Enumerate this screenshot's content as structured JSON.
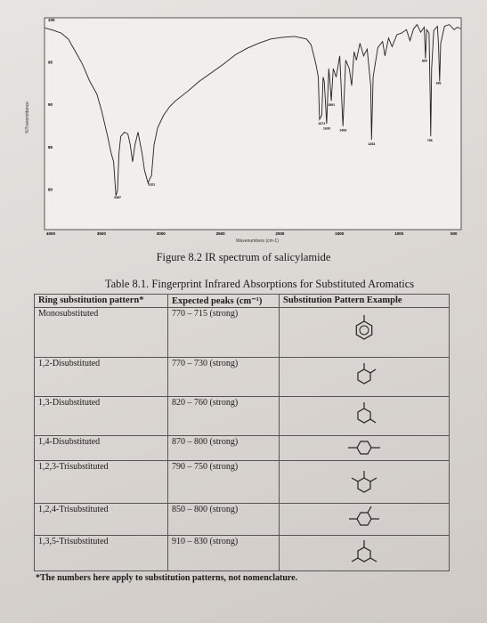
{
  "figure": {
    "caption": "Figure 8.2 IR spectrum of salicylamide",
    "y_axis_title": "%Transmittance",
    "x_axis_title": "Wavenumbers (cm-1)",
    "y_ticks": [
      "100",
      "95",
      "90",
      "85",
      "80"
    ],
    "x_ticks": [
      "4000",
      "3500",
      "3000",
      "2500",
      "2000",
      "1500",
      "1000",
      "500"
    ],
    "peak_labels": [
      "3101",
      "3387",
      "1671",
      "1630",
      "1591",
      "1493",
      "1253",
      "800",
      "681",
      "756"
    ]
  },
  "table": {
    "caption": "Table 8.1. Fingerprint Infrared Absorptions for Substituted Aromatics",
    "headers": [
      "Ring substitution pattern*",
      "Expected peaks (cm⁻¹)",
      "Substitution Pattern Example"
    ],
    "rows": [
      {
        "pattern": "Monosubstituted",
        "peaks": "770 – 715 (strong)",
        "ring": "mono-ring-icon"
      },
      {
        "pattern": "1,2-Disubstituted",
        "peaks": "770 – 730 (strong)",
        "ring": "ortho-ring-icon"
      },
      {
        "pattern": "1,3-Disubstituted",
        "peaks": "820 – 760 (strong)",
        "ring": "meta-ring-icon"
      },
      {
        "pattern": "1,4-Disubstituted",
        "peaks": "870 – 800 (strong)",
        "ring": "para-ring-icon"
      },
      {
        "pattern": "1,2,3-Trisubstituted",
        "peaks": "790 – 750 (strong)",
        "ring": "123-ring-icon"
      },
      {
        "pattern": "1,2,4-Trisubstituted",
        "peaks": "850 – 800 (strong)",
        "ring": "124-ring-icon"
      },
      {
        "pattern": "1,3,5-Trisubstituted",
        "peaks": "910 – 830 (strong)",
        "ring": "135-ring-icon"
      }
    ],
    "footnote": "*The numbers here apply to substitution patterns, not nomenclature."
  }
}
